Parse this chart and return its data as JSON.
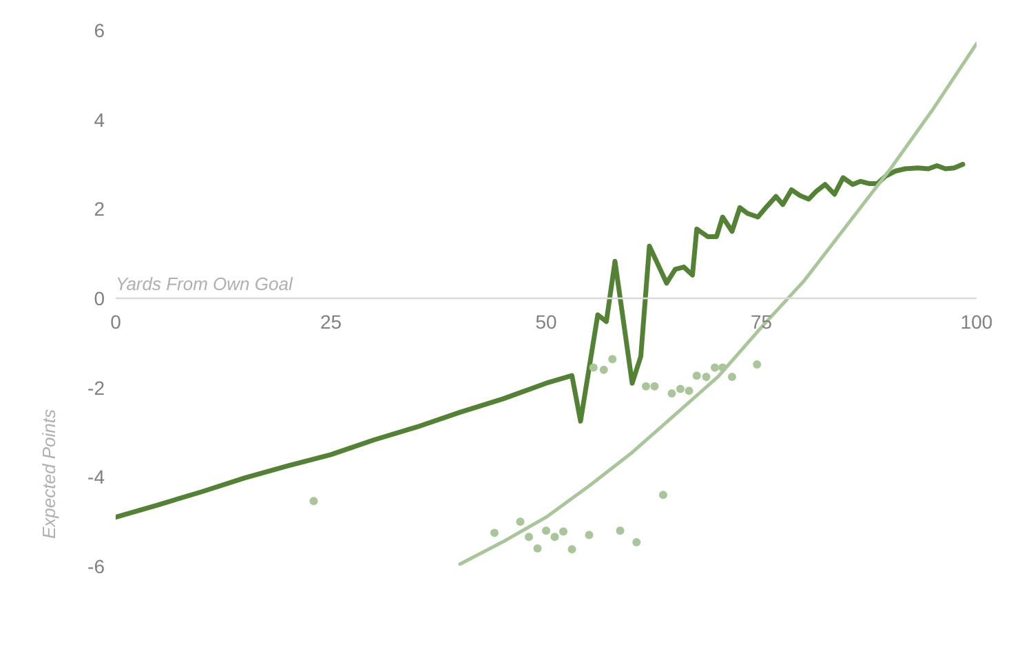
{
  "chart_data": {
    "type": "line",
    "xlabel": "Yards From Own Goal",
    "ylabel": "Expected Points",
    "xlim": [
      0,
      100
    ],
    "xticks": [
      0,
      25,
      50,
      75,
      100
    ],
    "ylim": [
      -6,
      6
    ],
    "yticks": [
      -6,
      -4,
      -2,
      0,
      2,
      4,
      6
    ],
    "grid": false,
    "legend": false,
    "series": [
      {
        "color": "#548235",
        "x": [
          0,
          5,
          10,
          15,
          20,
          25,
          30,
          35,
          40,
          45,
          50,
          53,
          54,
          56,
          57,
          58,
          60,
          61,
          62,
          64,
          65,
          66,
          67,
          67.5,
          68.8,
          69.8,
          70.5,
          71.6,
          72.5,
          73.4,
          74.6,
          75.7,
          76.7,
          77.5,
          78.5,
          79.5,
          80.5,
          81.4,
          82.4,
          83.5,
          84.5,
          85.6,
          86.5,
          87.5,
          88.5,
          89.4,
          90.6,
          91.7,
          93.2,
          94.4,
          95.4,
          96.4,
          97.4,
          98.4
        ],
        "values": [
          -4.9,
          -4.62,
          -4.33,
          -4.02,
          -3.75,
          -3.5,
          -3.17,
          -2.88,
          -2.55,
          -2.25,
          -1.9,
          -1.73,
          -2.75,
          -0.37,
          -0.52,
          0.83,
          -1.9,
          -1.3,
          1.17,
          0.34,
          0.65,
          0.7,
          0.52,
          1.55,
          1.38,
          1.38,
          1.82,
          1.5,
          2.03,
          1.9,
          1.82,
          2.07,
          2.28,
          2.1,
          2.43,
          2.3,
          2.22,
          2.4,
          2.55,
          2.33,
          2.7,
          2.55,
          2.62,
          2.57,
          2.57,
          2.73,
          2.85,
          2.9,
          2.92,
          2.9,
          2.97,
          2.9,
          2.92,
          3.0
        ]
      },
      {
        "type": "scatter",
        "marker": "circle",
        "color": "#a9c69a",
        "x": [
          23,
          44,
          47,
          48,
          49,
          50,
          51,
          52,
          53,
          55,
          55.5,
          56.7,
          57.7,
          58.6,
          60.5,
          61.6,
          62.6,
          63.6,
          64.6,
          65.6,
          66.6,
          67.5,
          68.6,
          69.6,
          70.5,
          71.6,
          74.5
        ],
        "values": [
          -4.54,
          -5.25,
          -5.0,
          -5.34,
          -5.6,
          -5.2,
          -5.34,
          -5.22,
          -5.62,
          -5.3,
          -1.55,
          -1.6,
          -1.36,
          -5.2,
          -5.46,
          -1.97,
          -1.97,
          -4.4,
          -2.13,
          -2.03,
          -2.07,
          -1.73,
          -1.76,
          -1.55,
          -1.55,
          -1.76,
          -1.48
        ]
      },
      {
        "type": "line",
        "color": "#a9c69a",
        "x": [
          40,
          45,
          50,
          55,
          60,
          65,
          70,
          75,
          80,
          85,
          90,
          95,
          100
        ],
        "values": [
          -5.95,
          -5.45,
          -4.9,
          -4.2,
          -3.45,
          -2.6,
          -1.75,
          -0.65,
          0.4,
          1.65,
          2.9,
          4.25,
          5.7
        ]
      }
    ]
  }
}
